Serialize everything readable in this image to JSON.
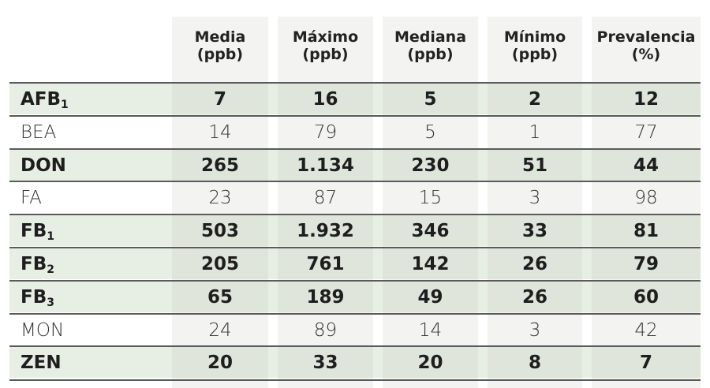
{
  "chart_data": {
    "type": "table",
    "columns": [
      {
        "label": "Media",
        "unit": "(ppb)"
      },
      {
        "label": "Máximo",
        "unit": "(ppb)"
      },
      {
        "label": "Mediana",
        "unit": "(ppb)"
      },
      {
        "label": "Mínimo",
        "unit": "(ppb)"
      },
      {
        "label": "Prevalencia",
        "unit": "(%)"
      }
    ],
    "rows": [
      {
        "label": "AFB",
        "sub": "1",
        "bold": true,
        "values": [
          "7",
          "16",
          "5",
          "2",
          "12"
        ]
      },
      {
        "label": "BEA",
        "sub": "",
        "bold": false,
        "values": [
          "14",
          "79",
          "5",
          "1",
          "77"
        ]
      },
      {
        "label": "DON",
        "sub": "",
        "bold": true,
        "values": [
          "265",
          "1.134",
          "230",
          "51",
          "44"
        ]
      },
      {
        "label": "FA",
        "sub": "",
        "bold": false,
        "values": [
          "23",
          "87",
          "15",
          "3",
          "98"
        ]
      },
      {
        "label": "FB",
        "sub": "1",
        "bold": true,
        "values": [
          "503",
          "1.932",
          "346",
          "33",
          "81"
        ]
      },
      {
        "label": "FB",
        "sub": "2",
        "bold": true,
        "values": [
          "205",
          "761",
          "142",
          "26",
          "79"
        ]
      },
      {
        "label": "FB",
        "sub": "3",
        "bold": true,
        "values": [
          "65",
          "189",
          "49",
          "26",
          "60"
        ]
      },
      {
        "label": "MON",
        "sub": "",
        "bold": false,
        "values": [
          "24",
          "89",
          "14",
          "3",
          "42"
        ]
      },
      {
        "label": "ZEN",
        "sub": "",
        "bold": true,
        "values": [
          "20",
          "33",
          "20",
          "8",
          "7"
        ]
      }
    ],
    "colors": {
      "column_band": "#f3f3f1",
      "highlight_row": "#e7eee4",
      "highlight_cell": "#dfe5da",
      "rule": "#5a5a5a"
    }
  }
}
